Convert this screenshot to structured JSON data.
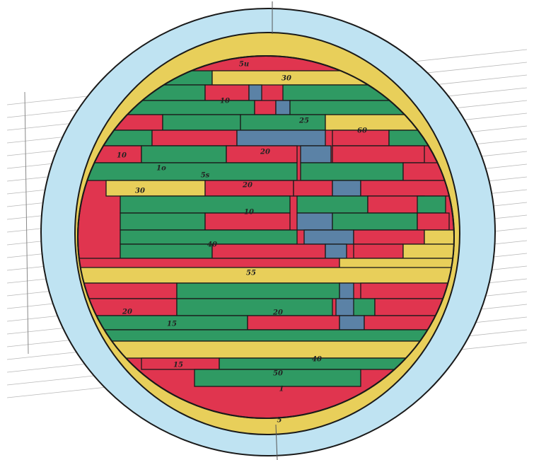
{
  "labels": [
    "5u",
    "30",
    "10",
    "25",
    "60",
    "20",
    "10",
    "1o",
    "5s",
    "30",
    "20",
    "10",
    "40",
    "55",
    "20",
    "20",
    "15",
    "15",
    "40",
    "50",
    "1",
    "5"
  ]
}
